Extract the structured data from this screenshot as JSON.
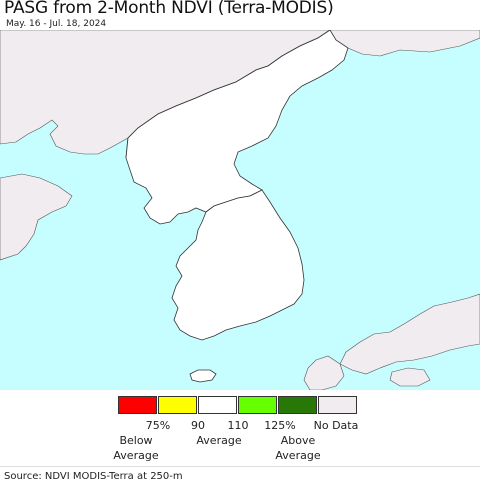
{
  "header": {
    "title": "PASG from 2-Month NDVI (Terra-MODIS)",
    "date_range": "May. 16 - Jul. 18, 2024"
  },
  "map": {
    "region": "Korean Peninsula",
    "colors": {
      "water": "#c6fdfe",
      "foreign_land": "#f0ecef",
      "land_average": "#ffffff",
      "border": "#555555"
    }
  },
  "legend": {
    "swatches": [
      {
        "color": "#ff0000"
      },
      {
        "color": "#ffff00"
      },
      {
        "color": "#ffffff"
      },
      {
        "color": "#66ff00"
      },
      {
        "color": "#287808"
      },
      {
        "color": "#f0ecef"
      }
    ],
    "ticks": [
      "75%",
      "90",
      "110",
      "125%",
      "No Data"
    ],
    "captions": [
      "Below\nAverage",
      "Average",
      "Above\nAverage"
    ]
  },
  "footer": {
    "source": "Source: NDVI MODIS-Terra at 250-m"
  }
}
